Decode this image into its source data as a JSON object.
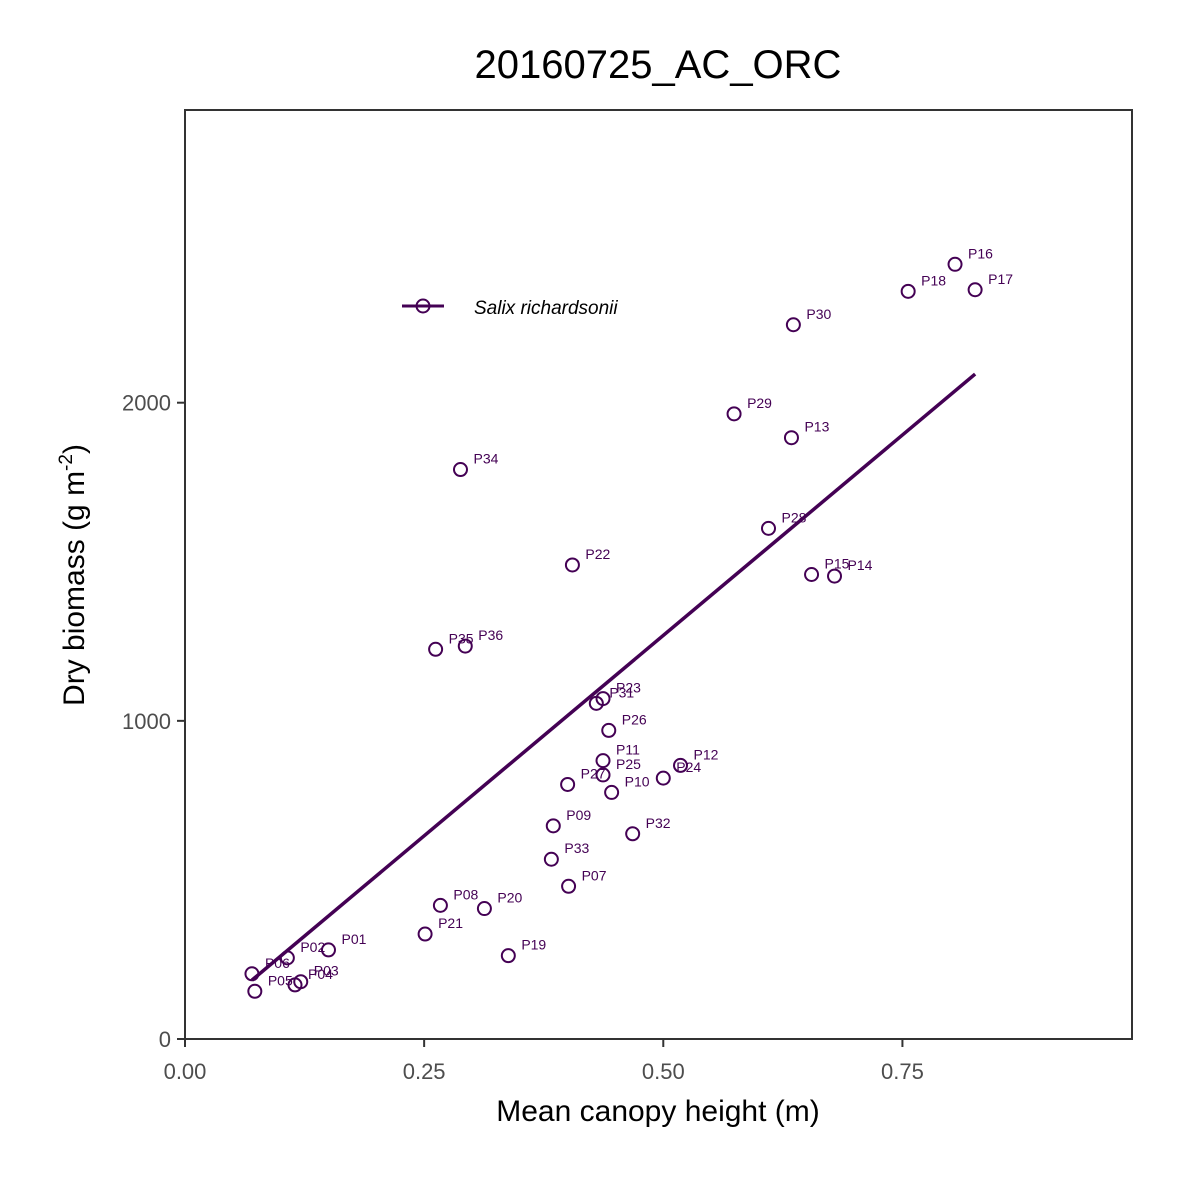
{
  "chart_data": {
    "type": "scatter",
    "title": "20160725_AC_ORC",
    "xlabel": "Mean canopy height (m)",
    "ylabel_main": "Dry biomass (g m",
    "ylabel_sup": "-2",
    "ylabel_close": ")",
    "xlim": [
      0,
      0.99
    ],
    "ylim": [
      0,
      2920
    ],
    "x_ticks": [
      0,
      0.25,
      0.5,
      0.75
    ],
    "x_tick_labels": [
      "0.00",
      "0.25",
      "0.50",
      "0.75"
    ],
    "y_ticks": [
      0,
      1000,
      2000
    ],
    "y_tick_labels": [
      "0",
      "1000",
      "2000"
    ],
    "grid": false,
    "legend_position": "top-left",
    "color": "#440154",
    "series": [
      {
        "name": "Salix richardsonii",
        "points": [
          {
            "label": "P01",
            "x": 0.15,
            "y": 280
          },
          {
            "label": "P02",
            "x": 0.107,
            "y": 255
          },
          {
            "label": "P03",
            "x": 0.121,
            "y": 180
          },
          {
            "label": "P04",
            "x": 0.115,
            "y": 170
          },
          {
            "label": "P05",
            "x": 0.073,
            "y": 150
          },
          {
            "label": "P06",
            "x": 0.07,
            "y": 205
          },
          {
            "label": "P07",
            "x": 0.401,
            "y": 480
          },
          {
            "label": "P08",
            "x": 0.267,
            "y": 420
          },
          {
            "label": "P09",
            "x": 0.385,
            "y": 670
          },
          {
            "label": "P10",
            "x": 0.446,
            "y": 775
          },
          {
            "label": "P11",
            "x": 0.437,
            "y": 875
          },
          {
            "label": "P12",
            "x": 0.518,
            "y": 860
          },
          {
            "label": "P13",
            "x": 0.634,
            "y": 1890
          },
          {
            "label": "P14",
            "x": 0.679,
            "y": 1455
          },
          {
            "label": "P15",
            "x": 0.655,
            "y": 1460
          },
          {
            "label": "P16",
            "x": 0.805,
            "y": 2435
          },
          {
            "label": "P17",
            "x": 0.826,
            "y": 2355
          },
          {
            "label": "P18",
            "x": 0.756,
            "y": 2350
          },
          {
            "label": "P19",
            "x": 0.338,
            "y": 262
          },
          {
            "label": "P20",
            "x": 0.313,
            "y": 410
          },
          {
            "label": "P21",
            "x": 0.251,
            "y": 330
          },
          {
            "label": "P22",
            "x": 0.405,
            "y": 1490
          },
          {
            "label": "P23",
            "x": 0.437,
            "y": 1070
          },
          {
            "label": "P24",
            "x": 0.5,
            "y": 820
          },
          {
            "label": "P25",
            "x": 0.437,
            "y": 830
          },
          {
            "label": "P26",
            "x": 0.443,
            "y": 970
          },
          {
            "label": "P27",
            "x": 0.4,
            "y": 800
          },
          {
            "label": "P28",
            "x": 0.61,
            "y": 1605
          },
          {
            "label": "P29",
            "x": 0.574,
            "y": 1965
          },
          {
            "label": "P30",
            "x": 0.636,
            "y": 2245
          },
          {
            "label": "P31",
            "x": 0.43,
            "y": 1055
          },
          {
            "label": "P32",
            "x": 0.468,
            "y": 645
          },
          {
            "label": "P33",
            "x": 0.383,
            "y": 565
          },
          {
            "label": "P34",
            "x": 0.288,
            "y": 1790
          },
          {
            "label": "P35",
            "x": 0.262,
            "y": 1225
          },
          {
            "label": "P36",
            "x": 0.293,
            "y": 1235
          }
        ],
        "fit_line": {
          "x": [
            0.07,
            0.826
          ],
          "y": [
            185,
            2090
          ]
        }
      }
    ]
  }
}
